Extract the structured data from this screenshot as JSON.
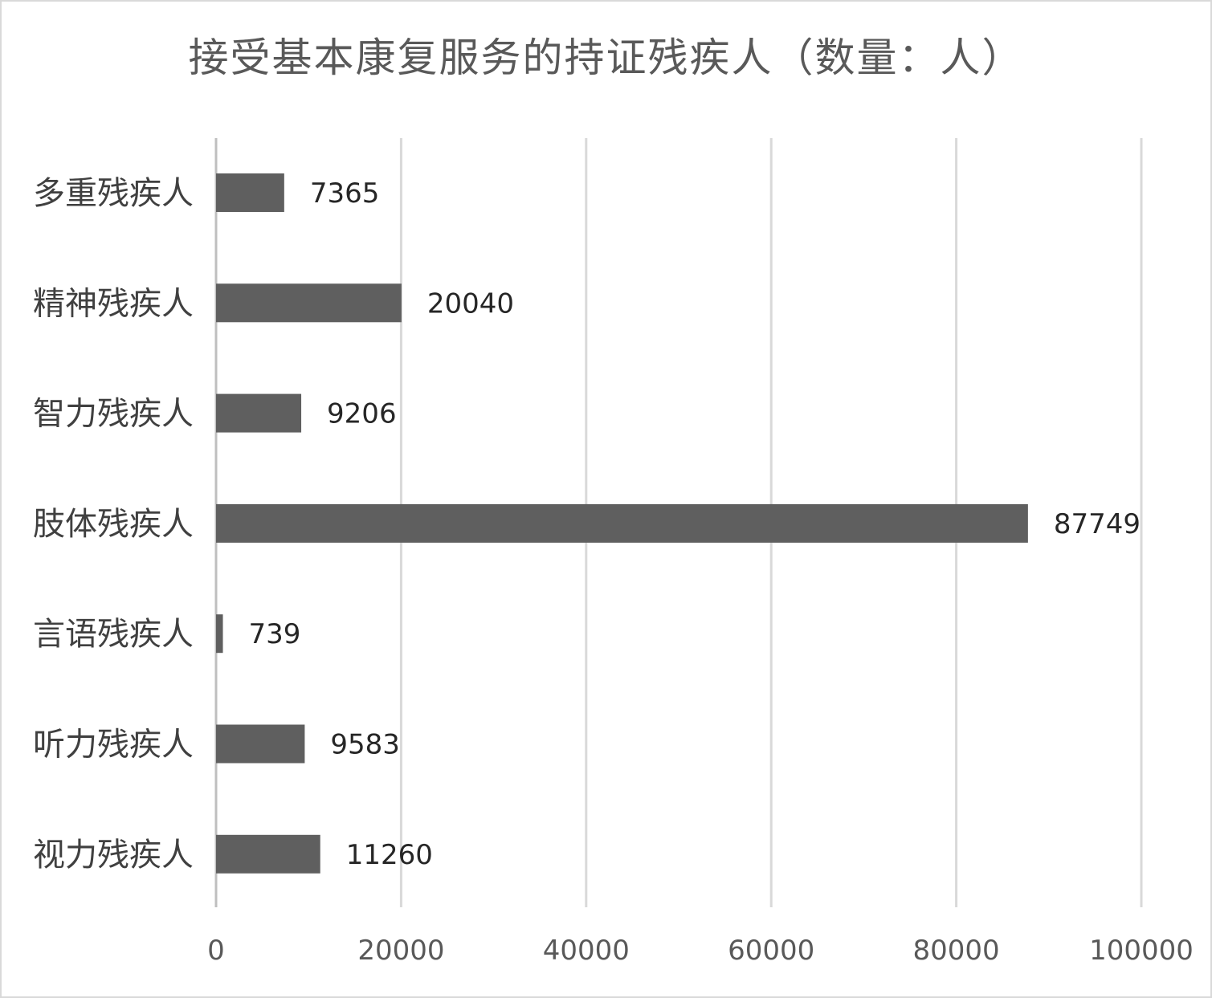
{
  "chart_data": {
    "type": "bar",
    "orientation": "horizontal",
    "title": "接受基本康复服务的持证残疾人（数量：人）",
    "categories": [
      "多重残疾人",
      "精神残疾人",
      "智力残疾人",
      "肢体残疾人",
      "言语残疾人",
      "听力残疾人",
      "视力残疾人"
    ],
    "values": [
      7365,
      20040,
      9206,
      87749,
      739,
      9583,
      11260
    ],
    "xlim": [
      0,
      100000
    ],
    "x_ticks": [
      "0",
      "20000",
      "40000",
      "60000",
      "80000",
      "100000"
    ],
    "xlabel": "",
    "ylabel": "",
    "grid": true,
    "legend": "none",
    "data_labels": true,
    "bar_color": "#5f5f5f"
  }
}
